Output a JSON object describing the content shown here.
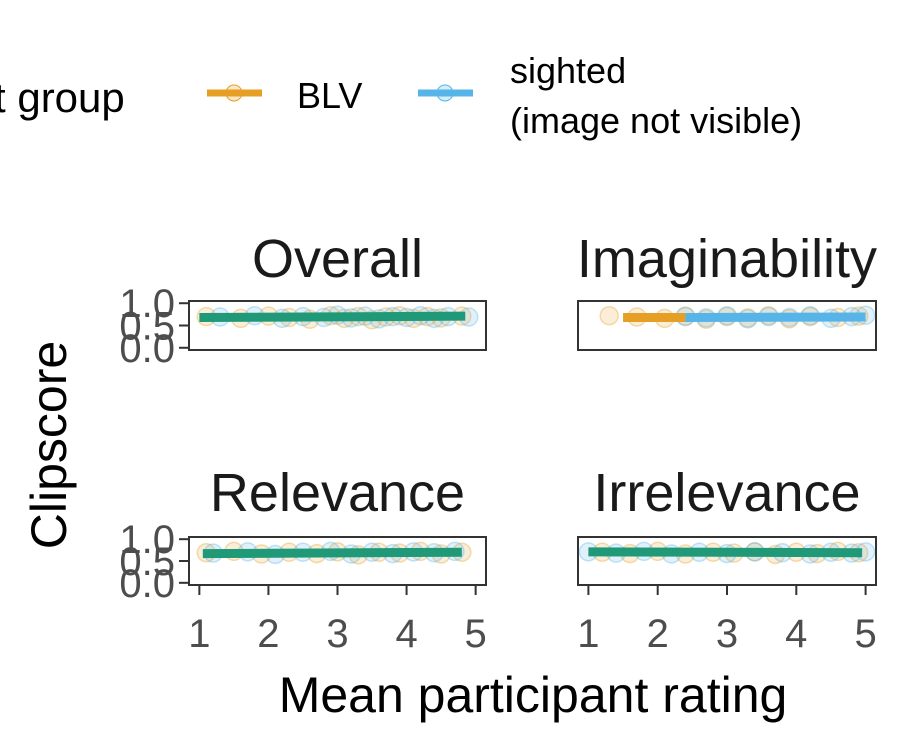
{
  "legend": {
    "title": "t group",
    "items": [
      {
        "label": "BLV",
        "color": "#E69F25",
        "line2": ""
      },
      {
        "label": "sighted",
        "line2": "(image not visible)",
        "color": "#56B4E9"
      }
    ]
  },
  "colors": {
    "BLV": "#E69F25",
    "sighted": "#56B4E9",
    "overlap": "#1F9977"
  },
  "chart_data": {
    "type": "scatter",
    "xlabel": "Mean participant rating",
    "ylabel": "Clipscore",
    "x_ticks": [
      "1",
      "2",
      "3",
      "4",
      "5"
    ],
    "y_ticks": [
      "0.0",
      "0.5",
      "1.0"
    ],
    "xlim": [
      0.85,
      5.15
    ],
    "ylim": [
      -0.05,
      1.05
    ],
    "series_names": [
      "BLV",
      "sighted\n(image not visible)"
    ],
    "facets": [
      {
        "title": "Overall",
        "points": {
          "BLV": [
            [
              1.1,
              0.7
            ],
            [
              1.6,
              0.66
            ],
            [
              2.0,
              0.71
            ],
            [
              2.3,
              0.68
            ],
            [
              2.6,
              0.64
            ],
            [
              2.9,
              0.72
            ],
            [
              3.1,
              0.66
            ],
            [
              3.3,
              0.7
            ],
            [
              3.5,
              0.63
            ],
            [
              3.7,
              0.69
            ],
            [
              3.9,
              0.72
            ],
            [
              4.1,
              0.66
            ],
            [
              4.3,
              0.7
            ],
            [
              4.5,
              0.67
            ],
            [
              4.8,
              0.71
            ]
          ],
          "sighted": [
            [
              1.3,
              0.69
            ],
            [
              1.8,
              0.72
            ],
            [
              2.2,
              0.66
            ],
            [
              2.5,
              0.7
            ],
            [
              2.8,
              0.68
            ],
            [
              3.0,
              0.73
            ],
            [
              3.2,
              0.67
            ],
            [
              3.4,
              0.71
            ],
            [
              3.6,
              0.65
            ],
            [
              3.8,
              0.7
            ],
            [
              4.0,
              0.68
            ],
            [
              4.2,
              0.72
            ],
            [
              4.4,
              0.66
            ],
            [
              4.6,
              0.7
            ],
            [
              4.9,
              0.69
            ]
          ]
        },
        "fits": {
          "BLV": [
            [
              1.0,
              0.68
            ],
            [
              4.85,
              0.71
            ]
          ],
          "sighted": [
            [
              1.0,
              0.68
            ],
            [
              4.85,
              0.71
            ]
          ]
        }
      },
      {
        "title": "Imaginability",
        "points": {
          "BLV": [
            [
              1.3,
              0.72
            ],
            [
              1.7,
              0.69
            ],
            [
              2.1,
              0.66
            ],
            [
              2.4,
              0.71
            ],
            [
              2.7,
              0.64
            ],
            [
              3.0,
              0.7
            ],
            [
              3.3,
              0.67
            ],
            [
              3.6,
              0.72
            ],
            [
              3.9,
              0.65
            ],
            [
              4.2,
              0.7
            ],
            [
              4.6,
              0.68
            ],
            [
              4.9,
              0.71
            ]
          ],
          "sighted": [
            [
              2.4,
              0.7
            ],
            [
              2.7,
              0.67
            ],
            [
              3.0,
              0.72
            ],
            [
              3.3,
              0.65
            ],
            [
              3.6,
              0.7
            ],
            [
              3.9,
              0.68
            ],
            [
              4.2,
              0.72
            ],
            [
              4.5,
              0.66
            ],
            [
              4.8,
              0.7
            ],
            [
              5.0,
              0.73
            ]
          ]
        },
        "fits": {
          "BLV": [
            [
              1.5,
              0.68
            ],
            [
              2.4,
              0.68
            ]
          ],
          "sighted": [
            [
              2.4,
              0.68
            ],
            [
              5.0,
              0.69
            ]
          ]
        }
      },
      {
        "title": "Relevance",
        "points": {
          "BLV": [
            [
              1.1,
              0.69
            ],
            [
              1.5,
              0.72
            ],
            [
              1.9,
              0.66
            ],
            [
              2.3,
              0.7
            ],
            [
              2.7,
              0.67
            ],
            [
              3.0,
              0.71
            ],
            [
              3.3,
              0.64
            ],
            [
              3.6,
              0.7
            ],
            [
              3.9,
              0.68
            ],
            [
              4.2,
              0.72
            ],
            [
              4.5,
              0.66
            ],
            [
              4.8,
              0.7
            ]
          ],
          "sighted": [
            [
              1.2,
              0.68
            ],
            [
              1.7,
              0.71
            ],
            [
              2.1,
              0.65
            ],
            [
              2.5,
              0.7
            ],
            [
              2.9,
              0.72
            ],
            [
              3.2,
              0.66
            ],
            [
              3.5,
              0.7
            ],
            [
              3.8,
              0.67
            ],
            [
              4.1,
              0.71
            ],
            [
              4.4,
              0.69
            ],
            [
              4.7,
              0.72
            ]
          ]
        },
        "fits": {
          "BLV": [
            [
              1.05,
              0.67
            ],
            [
              4.8,
              0.7
            ]
          ],
          "sighted": [
            [
              1.05,
              0.67
            ],
            [
              4.8,
              0.7
            ]
          ]
        }
      },
      {
        "title": "Irrelevance",
        "points": {
          "BLV": [
            [
              1.2,
              0.7
            ],
            [
              1.6,
              0.67
            ],
            [
              2.0,
              0.72
            ],
            [
              2.4,
              0.66
            ],
            [
              2.8,
              0.7
            ],
            [
              3.1,
              0.68
            ],
            [
              3.4,
              0.71
            ],
            [
              3.7,
              0.65
            ],
            [
              4.0,
              0.7
            ],
            [
              4.3,
              0.67
            ],
            [
              4.6,
              0.72
            ],
            [
              4.9,
              0.69
            ]
          ],
          "sighted": [
            [
              1.0,
              0.71
            ],
            [
              1.4,
              0.68
            ],
            [
              1.8,
              0.72
            ],
            [
              2.2,
              0.66
            ],
            [
              2.6,
              0.7
            ],
            [
              3.0,
              0.67
            ],
            [
              3.4,
              0.71
            ],
            [
              3.8,
              0.69
            ],
            [
              4.2,
              0.66
            ],
            [
              4.5,
              0.7
            ],
            [
              4.8,
              0.68
            ],
            [
              5.0,
              0.71
            ]
          ]
        },
        "fits": {
          "BLV": [
            [
              1.0,
              0.71
            ],
            [
              4.95,
              0.69
            ]
          ],
          "sighted": [
            [
              1.0,
              0.71
            ],
            [
              4.95,
              0.69
            ]
          ]
        }
      }
    ]
  }
}
